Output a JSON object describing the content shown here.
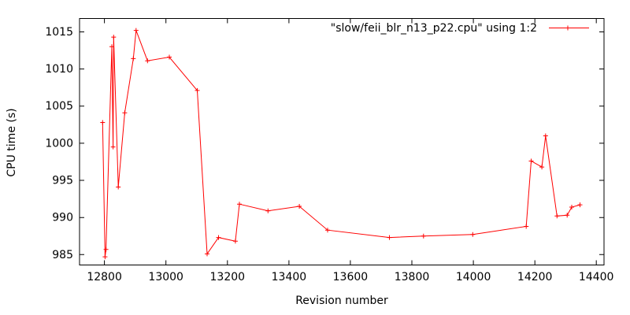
{
  "figure": {
    "background": "#ffffff",
    "frame_color": "#000000",
    "text_color": "#000000",
    "series_color": "#ff0000"
  },
  "chart_data": {
    "type": "line",
    "title": "",
    "xlabel": "Revision number",
    "ylabel": "CPU time (s)",
    "grid": false,
    "legend": {
      "label": "\"slow/feii_blr_n13_p22.cpu\" using 1:2",
      "position": "top-right-inside",
      "marker": "plus"
    },
    "xlim": [
      12719,
      14425
    ],
    "ylim": [
      983.6,
      1016.8
    ],
    "x_ticks": [
      "12800",
      "13000",
      "13200",
      "13400",
      "13600",
      "13800",
      "14000",
      "14200",
      "14400"
    ],
    "x_tick_values": [
      12800,
      13000,
      13200,
      13400,
      13600,
      13800,
      14000,
      14200,
      14400
    ],
    "y_ticks": [
      "985",
      "990",
      "995",
      "1000",
      "1005",
      "1010",
      "1015"
    ],
    "y_tick_values": [
      985,
      990,
      995,
      1000,
      1005,
      1010,
      1015
    ],
    "series": [
      {
        "name": "\"slow/feii_blr_n13_p22.cpu\" using 1:2",
        "color": "#ff0000",
        "marker": "plus",
        "points": [
          [
            12794,
            1002.8
          ],
          [
            12802,
            984.7
          ],
          [
            12805,
            985.7
          ],
          [
            12824,
            1013.0
          ],
          [
            12828,
            999.5
          ],
          [
            12830,
            1014.3
          ],
          [
            12845,
            994.1
          ],
          [
            12866,
            1004.1
          ],
          [
            12894,
            1011.4
          ],
          [
            12903,
            1015.2
          ],
          [
            12940,
            1011.1
          ],
          [
            13011,
            1011.6
          ],
          [
            13102,
            1007.1
          ],
          [
            13134,
            985.1
          ],
          [
            13171,
            987.3
          ],
          [
            13226,
            986.8
          ],
          [
            13239,
            991.8
          ],
          [
            13332,
            990.9
          ],
          [
            13434,
            991.5
          ],
          [
            13526,
            988.3
          ],
          [
            13727,
            987.3
          ],
          [
            13838,
            987.5
          ],
          [
            13998,
            987.7
          ],
          [
            14172,
            988.8
          ],
          [
            14188,
            997.6
          ],
          [
            14223,
            996.8
          ],
          [
            14235,
            1001.0
          ],
          [
            14272,
            990.2
          ],
          [
            14305,
            990.3
          ],
          [
            14320,
            991.4
          ],
          [
            14347,
            991.7
          ]
        ]
      }
    ]
  }
}
